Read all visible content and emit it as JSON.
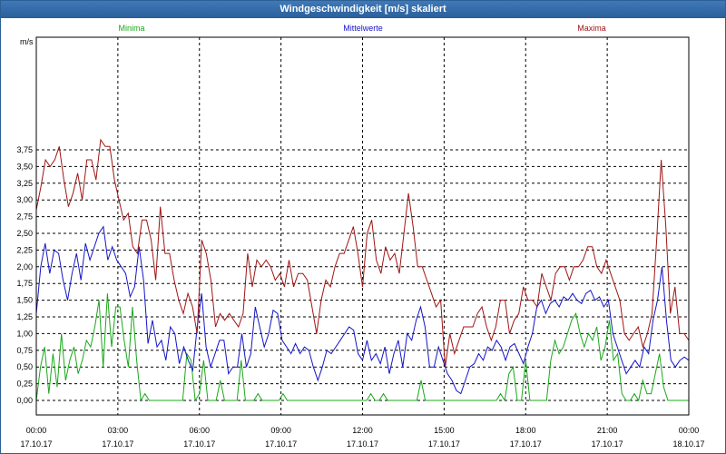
{
  "window": {
    "title": "Windgeschwindigkeit [m/s] skaliert"
  },
  "chart_data": {
    "type": "line",
    "title": "Windgeschwindigkeit [m/s] skaliert",
    "ylabel": "m/s",
    "ylim": [
      0,
      4.0
    ],
    "xlim": [
      0,
      24
    ],
    "grid": true,
    "legend_placement": "top",
    "y_ticks": [
      "0,00",
      "0,25",
      "0,50",
      "0,75",
      "1,00",
      "1,25",
      "1,50",
      "1,75",
      "2,00",
      "2,25",
      "2,50",
      "2,75",
      "3,00",
      "3,25",
      "3,50",
      "3,75"
    ],
    "x_ticks": [
      {
        "time": "00:00",
        "date": "17.10.17"
      },
      {
        "time": "03:00",
        "date": "17.10.17"
      },
      {
        "time": "06:00",
        "date": "17.10.17"
      },
      {
        "time": "09:00",
        "date": "17.10.17"
      },
      {
        "time": "12:00",
        "date": "17.10.17"
      },
      {
        "time": "15:00",
        "date": "17.10.17"
      },
      {
        "time": "18:00",
        "date": "17.10.17"
      },
      {
        "time": "21:00",
        "date": "17.10.17"
      },
      {
        "time": "00:00",
        "date": "18.10.17"
      }
    ],
    "series": [
      {
        "name": "Minima",
        "color": "#1aa81a",
        "values": [
          0,
          0.5,
          0.8,
          0.1,
          0.7,
          0.2,
          1.0,
          0.3,
          0.6,
          0.8,
          0.4,
          0.6,
          0.9,
          0.8,
          1.1,
          1.5,
          0.5,
          1.6,
          0.8,
          1.4,
          1.4,
          0.9,
          0.5,
          1.4,
          0.6,
          0,
          0.1,
          0,
          0,
          0,
          0,
          0,
          0,
          0,
          0,
          0,
          0.7,
          0.6,
          0,
          0.1,
          0.6,
          0,
          0,
          0,
          0.3,
          0,
          0,
          0,
          0,
          0.6,
          0,
          0,
          0,
          0.1,
          0,
          0,
          0,
          0,
          0,
          0.1,
          0,
          0,
          0,
          0,
          0,
          0,
          0,
          0,
          0,
          0,
          0,
          0,
          0,
          0,
          0,
          0,
          0,
          0,
          0,
          0,
          0.1,
          0,
          0,
          0.1,
          0,
          0,
          0,
          0,
          0,
          0,
          0,
          0,
          0.3,
          0,
          0,
          0,
          0,
          0,
          0,
          0,
          0,
          0,
          0,
          0,
          0,
          0,
          0,
          0,
          0,
          0,
          0,
          0.1,
          0,
          0.4,
          0.5,
          0,
          0,
          0.6,
          0,
          0,
          0,
          0,
          0,
          0.6,
          0.9,
          0.7,
          0.8,
          1.0,
          1.2,
          1.3,
          1.0,
          0.8,
          1.0,
          0.9,
          1.1,
          0.6,
          0.8,
          1.2,
          0.6,
          0.7,
          0.1,
          0,
          0,
          0.1,
          0,
          0.3,
          0.1,
          0.1,
          0.4,
          0.7,
          0.2,
          0,
          0,
          0,
          0,
          0,
          0
        ]
      },
      {
        "name": "Mittelwerte",
        "color": "#1414c8",
        "values": [
          1.3,
          2.0,
          2.35,
          1.9,
          2.25,
          2.2,
          1.8,
          1.5,
          1.9,
          2.2,
          1.8,
          2.35,
          2.1,
          2.3,
          2.5,
          2.6,
          2.1,
          2.3,
          2.1,
          2.0,
          1.9,
          1.55,
          1.7,
          2.3,
          1.8,
          0.85,
          1.2,
          0.8,
          0.9,
          0.6,
          1.1,
          1.0,
          0.55,
          0.8,
          0.6,
          0.45,
          1.1,
          1.6,
          0.8,
          0.5,
          0.7,
          0.9,
          0.9,
          0.4,
          0.5,
          0.5,
          1.0,
          0.5,
          0.7,
          1.4,
          1.1,
          0.8,
          1.0,
          1.35,
          1.3,
          0.9,
          0.8,
          0.7,
          0.85,
          0.7,
          0.8,
          0.75,
          0.5,
          0.3,
          0.5,
          0.75,
          0.7,
          0.8,
          0.9,
          1.0,
          1.1,
          1.05,
          0.7,
          0.6,
          0.9,
          0.6,
          0.7,
          0.55,
          0.8,
          0.4,
          0.7,
          0.9,
          0.5,
          1.0,
          0.9,
          1.2,
          1.4,
          1.1,
          0.5,
          0.5,
          0.8,
          0.6,
          0.4,
          0.3,
          0.15,
          0.1,
          0.3,
          0.5,
          0.55,
          0.7,
          0.6,
          0.8,
          0.75,
          0.9,
          0.8,
          0.6,
          0.8,
          0.85,
          0.7,
          0.55,
          0.8,
          1.0,
          1.4,
          1.5,
          1.3,
          1.45,
          1.5,
          1.4,
          1.55,
          1.5,
          1.6,
          1.5,
          1.45,
          1.6,
          1.65,
          1.5,
          1.55,
          1.4,
          1.5,
          1.0,
          0.8,
          0.6,
          0.4,
          0.5,
          0.6,
          0.5,
          0.8,
          0.7,
          1.2,
          1.5,
          2.0,
          1.2,
          0.6,
          0.5,
          0.6,
          0.65,
          0.6
        ]
      },
      {
        "name": "Maxima",
        "color": "#a01414",
        "values": [
          2.85,
          3.2,
          3.6,
          3.5,
          3.6,
          3.8,
          3.3,
          2.9,
          3.1,
          3.4,
          3.0,
          3.6,
          3.6,
          3.3,
          3.9,
          3.8,
          3.8,
          3.3,
          3.0,
          2.7,
          2.8,
          2.3,
          2.2,
          2.7,
          2.7,
          2.4,
          1.8,
          2.9,
          2.2,
          2.2,
          1.8,
          1.5,
          1.3,
          1.6,
          1.4,
          1.0,
          2.4,
          2.2,
          1.8,
          1.1,
          1.3,
          1.2,
          1.3,
          1.2,
          1.1,
          1.3,
          2.2,
          1.7,
          2.1,
          2.0,
          2.1,
          2.0,
          1.8,
          1.9,
          1.7,
          2.1,
          1.7,
          1.9,
          1.9,
          1.8,
          1.4,
          1.0,
          1.5,
          1.8,
          1.7,
          2.0,
          2.2,
          2.2,
          2.4,
          2.6,
          2.2,
          1.7,
          2.5,
          2.7,
          2.1,
          1.9,
          2.3,
          2.1,
          2.2,
          1.9,
          2.5,
          3.1,
          2.6,
          2.0,
          2.0,
          1.8,
          1.6,
          1.4,
          1.5,
          0.5,
          1.0,
          0.7,
          0.9,
          1.1,
          1.1,
          1.1,
          1.3,
          1.4,
          1.1,
          0.9,
          1.1,
          1.5,
          1.5,
          1.0,
          1.2,
          1.3,
          1.7,
          1.5,
          1.5,
          1.4,
          1.9,
          1.7,
          1.5,
          1.9,
          2.0,
          2.0,
          1.8,
          2.0,
          2.0,
          2.1,
          2.3,
          2.3,
          2.0,
          1.9,
          2.1,
          1.9,
          1.7,
          1.5,
          1.0,
          0.9,
          1.0,
          1.1,
          0.8,
          1.0,
          1.3,
          2.4,
          3.6,
          2.6,
          1.3,
          1.7,
          1.0,
          1.0,
          0.9
        ]
      }
    ]
  }
}
